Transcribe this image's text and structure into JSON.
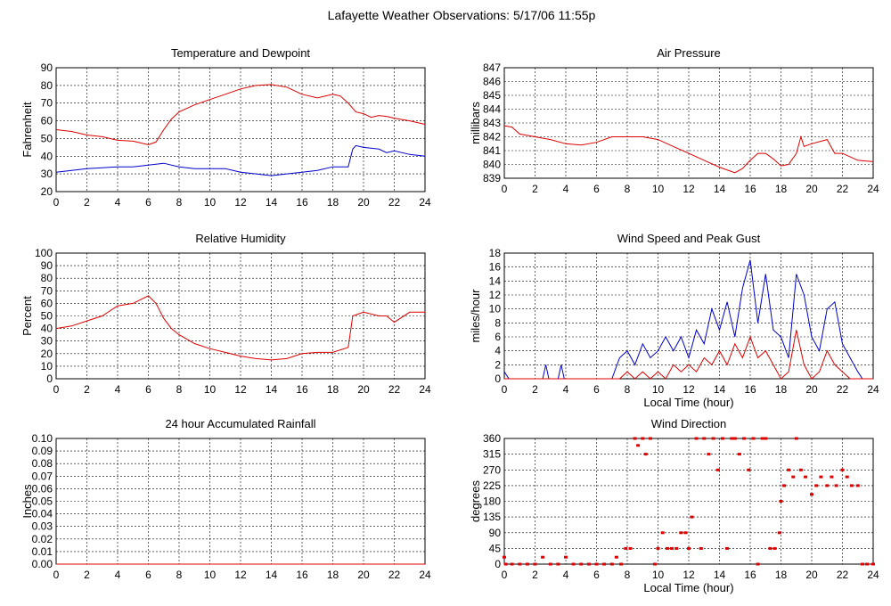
{
  "title": "Lafayette Weather Observations: 5/17/06 11:55p",
  "colors": {
    "red": "#dd0000",
    "blue": "#0000cc",
    "grid": "#000000"
  },
  "chart_data": [
    {
      "type": "line",
      "title": "Temperature and Dewpoint",
      "xlabel": "",
      "ylabel": "Fahrenheit",
      "xlim": [
        0,
        24
      ],
      "ylim": [
        20,
        90
      ],
      "xticks": [
        0,
        2,
        4,
        6,
        8,
        10,
        12,
        14,
        16,
        18,
        20,
        22,
        24
      ],
      "yticks": [
        20,
        30,
        40,
        50,
        60,
        70,
        80,
        90
      ],
      "series": [
        {
          "color": "#dd0000",
          "x": [
            0,
            1,
            2,
            3,
            4,
            5,
            6,
            6.5,
            7,
            7.5,
            8,
            9,
            10,
            11,
            12,
            13,
            14,
            15,
            16,
            17,
            18,
            18.5,
            19,
            19.5,
            20,
            20.5,
            21,
            21.5,
            22,
            23,
            24
          ],
          "y": [
            55,
            54,
            52,
            51,
            49,
            48.5,
            46.5,
            48,
            55,
            61,
            65,
            69,
            72,
            75,
            78,
            80,
            80.5,
            79,
            75,
            73,
            75,
            74,
            70,
            65,
            64,
            62,
            63,
            62.5,
            61.5,
            60,
            58
          ]
        },
        {
          "color": "#0000cc",
          "x": [
            0,
            1,
            2,
            3,
            4,
            5,
            6,
            7,
            8,
            9,
            10,
            11,
            12,
            13,
            14,
            15,
            16,
            17,
            18,
            19,
            19.3,
            19.5,
            20,
            21,
            21.5,
            22,
            23,
            24
          ],
          "y": [
            31,
            32,
            33,
            33.5,
            34,
            34,
            35,
            36,
            34,
            33,
            33,
            33,
            31,
            30,
            29,
            30,
            31,
            32,
            34,
            34,
            44,
            46,
            45,
            44,
            42,
            43,
            41,
            40
          ]
        }
      ]
    },
    {
      "type": "line",
      "title": "Air Pressure",
      "xlabel": "",
      "ylabel": "millibars",
      "xlim": [
        0,
        24
      ],
      "ylim": [
        839,
        847
      ],
      "xticks": [
        0,
        2,
        4,
        6,
        8,
        10,
        12,
        14,
        16,
        18,
        20,
        22,
        24
      ],
      "yticks": [
        839,
        840,
        841,
        842,
        843,
        844,
        845,
        846,
        847
      ],
      "series": [
        {
          "color": "#dd0000",
          "x": [
            0,
            0.5,
            1,
            2,
            3,
            4,
            5,
            6,
            7,
            8,
            9,
            10,
            11,
            12,
            13,
            14,
            15,
            15.5,
            16,
            16.5,
            17,
            17.5,
            18,
            18.5,
            19,
            19.3,
            19.5,
            20,
            21,
            21.5,
            22,
            23,
            24
          ],
          "y": [
            842.8,
            842.7,
            842.2,
            842,
            841.8,
            841.5,
            841.4,
            841.6,
            842,
            842,
            842,
            841.8,
            841.3,
            840.8,
            840.3,
            839.8,
            839.4,
            839.7,
            840.3,
            840.8,
            840.8,
            840.4,
            839.9,
            840,
            840.8,
            842,
            841.3,
            841.5,
            841.8,
            840.8,
            840.8,
            840.3,
            840.2
          ]
        }
      ]
    },
    {
      "type": "line",
      "title": "Relative Humidity",
      "xlabel": "",
      "ylabel": "Percent",
      "xlim": [
        0,
        24
      ],
      "ylim": [
        0,
        100
      ],
      "xticks": [
        0,
        2,
        4,
        6,
        8,
        10,
        12,
        14,
        16,
        18,
        20,
        22,
        24
      ],
      "yticks": [
        0,
        10,
        20,
        30,
        40,
        50,
        60,
        70,
        80,
        90,
        100
      ],
      "series": [
        {
          "color": "#dd0000",
          "x": [
            0,
            1,
            2,
            3,
            4,
            5,
            6,
            6.5,
            7,
            7.5,
            8,
            9,
            10,
            11,
            12,
            13,
            14,
            15,
            16,
            17,
            18,
            18.5,
            19,
            19.3,
            20,
            21,
            21.5,
            22,
            23,
            24
          ],
          "y": [
            40,
            42,
            46,
            50,
            58,
            60,
            66,
            60,
            48,
            40,
            35,
            28,
            24,
            21,
            18,
            16,
            15,
            16,
            20,
            21,
            21,
            23,
            25,
            50,
            53,
            50,
            50,
            45,
            53,
            53
          ]
        }
      ]
    },
    {
      "type": "line",
      "title": "Wind Speed and Peak Gust",
      "xlabel": "Local Time (hour)",
      "ylabel": "miles/hour",
      "xlim": [
        0,
        24
      ],
      "ylim": [
        0,
        18
      ],
      "xticks": [
        0,
        2,
        4,
        6,
        8,
        10,
        12,
        14,
        16,
        18,
        20,
        22,
        24
      ],
      "yticks": [
        0,
        2,
        4,
        6,
        8,
        10,
        12,
        14,
        16,
        18
      ],
      "series": [
        {
          "color": "#0000cc",
          "x": [
            0,
            0.3,
            0.5,
            2.5,
            2.7,
            2.9,
            3.5,
            3.7,
            3.9,
            7,
            7.5,
            8,
            8.5,
            9,
            9.5,
            10,
            10.5,
            11,
            11.5,
            12,
            12.5,
            13,
            13.5,
            14,
            14.5,
            15,
            15.5,
            16,
            16.5,
            17,
            17.5,
            18,
            18.5,
            19,
            19.5,
            20,
            20.5,
            21,
            21.5,
            22,
            22.5,
            23,
            23.3
          ],
          "y": [
            1,
            0,
            0,
            0,
            2,
            0,
            0,
            2,
            0,
            0,
            3,
            4,
            2,
            5,
            3,
            4,
            6,
            4,
            6,
            3,
            7,
            5,
            10,
            7,
            11,
            6,
            13,
            17,
            8,
            15,
            7,
            6,
            3,
            15,
            12,
            6,
            4,
            10,
            11,
            5,
            3,
            1,
            0
          ]
        },
        {
          "color": "#dd0000",
          "x": [
            0,
            7,
            7.5,
            8,
            8.5,
            9,
            9.5,
            10,
            10.5,
            11,
            11.5,
            12,
            12.5,
            13,
            13.5,
            14,
            14.5,
            15,
            15.5,
            16,
            16.5,
            17,
            17.5,
            18,
            18.5,
            19,
            19.5,
            20,
            20.5,
            21,
            21.5,
            22,
            22.5,
            23,
            24
          ],
          "y": [
            0,
            0,
            0,
            1,
            0,
            1,
            0,
            1,
            0,
            2,
            1,
            2,
            1,
            3,
            2,
            4,
            2,
            5,
            3,
            6,
            3,
            4,
            2,
            0,
            1,
            7,
            2,
            0,
            1,
            4,
            2,
            1,
            0,
            0,
            0
          ]
        }
      ]
    },
    {
      "type": "line",
      "title": "24 hour Accumulated Rainfall",
      "xlabel": "",
      "ylabel": "Inches",
      "xlim": [
        0,
        24
      ],
      "ylim": [
        0,
        0.1
      ],
      "xticks": [
        0,
        2,
        4,
        6,
        8,
        10,
        12,
        14,
        16,
        18,
        20,
        22,
        24
      ],
      "yticks": [
        0.0,
        0.01,
        0.02,
        0.03,
        0.04,
        0.05,
        0.06,
        0.07,
        0.08,
        0.09,
        0.1
      ],
      "series": [
        {
          "color": "#dd0000",
          "x": [
            0,
            24
          ],
          "y": [
            0,
            0
          ]
        }
      ]
    },
    {
      "type": "scatter",
      "title": "Wind Direction",
      "xlabel": "Local Time (hour)",
      "ylabel": "degrees",
      "xlim": [
        0,
        24
      ],
      "ylim": [
        0,
        360
      ],
      "xticks": [
        0,
        2,
        4,
        6,
        8,
        10,
        12,
        14,
        16,
        18,
        20,
        22,
        24
      ],
      "yticks": [
        0,
        45,
        90,
        135,
        180,
        225,
        270,
        315,
        360
      ],
      "series": [
        {
          "color": "#dd0000",
          "x": [
            0,
            0.1,
            0.5,
            1,
            1.5,
            2,
            2.5,
            3,
            3.5,
            4,
            4.5,
            5,
            5.5,
            6,
            6.5,
            7,
            7.3,
            7.6,
            7.9,
            8.2,
            8.5,
            8.7,
            9,
            9.2,
            9.5,
            9.8,
            10,
            10.3,
            10.6,
            10.9,
            11.2,
            11.5,
            11.8,
            12,
            12.2,
            12.5,
            12.8,
            13,
            13.3,
            13.6,
            13.9,
            14.2,
            14.5,
            14.8,
            15,
            15.3,
            15.6,
            15.9,
            16.2,
            16.5,
            16.8,
            17,
            17.3,
            17.6,
            17.9,
            18,
            18.2,
            18.5,
            18.8,
            19,
            19.3,
            19.6,
            20,
            20.3,
            20.6,
            21,
            21.3,
            21.6,
            22,
            22.3,
            22.6,
            23,
            23.3,
            23.6,
            24
          ],
          "y": [
            20,
            0,
            0,
            0,
            0,
            0,
            20,
            0,
            0,
            20,
            0,
            0,
            0,
            0,
            0,
            0,
            20,
            0,
            45,
            45,
            360,
            340,
            360,
            315,
            360,
            0,
            45,
            90,
            45,
            45,
            45,
            90,
            90,
            45,
            135,
            360,
            45,
            360,
            315,
            360,
            270,
            360,
            45,
            360,
            360,
            315,
            360,
            270,
            360,
            0,
            360,
            360,
            45,
            45,
            90,
            180,
            225,
            270,
            250,
            360,
            270,
            250,
            200,
            225,
            250,
            225,
            250,
            225,
            270,
            250,
            225,
            225,
            0,
            0,
            0
          ]
        }
      ]
    }
  ]
}
